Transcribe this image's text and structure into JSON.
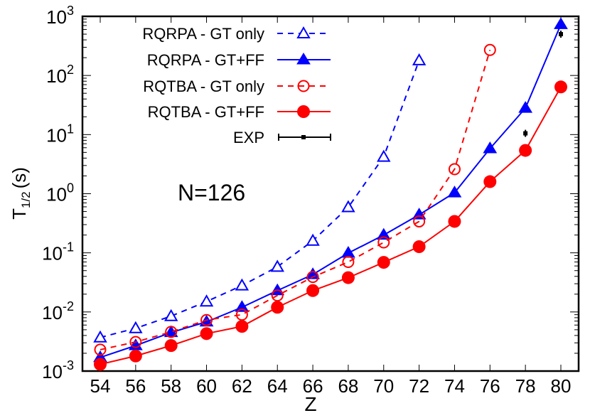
{
  "chart_data": {
    "type": "line",
    "title": "",
    "annotation": "N=126",
    "xlabel": "Z",
    "ylabel": "T1/2 (s)",
    "ylabel_main": "T",
    "ylabel_sub": "1/2",
    "ylabel_unit": "(s)",
    "yscale": "log",
    "xlim": [
      53,
      81
    ],
    "ylim": [
      0.001,
      1000
    ],
    "x_ticks": [
      54,
      56,
      58,
      60,
      62,
      64,
      66,
      68,
      70,
      72,
      74,
      76,
      78,
      80
    ],
    "y_ticks": [
      {
        "base": "10",
        "exp": "3"
      },
      {
        "base": "10",
        "exp": "2"
      },
      {
        "base": "10",
        "exp": "1"
      },
      {
        "base": "10",
        "exp": "0"
      },
      {
        "base": "10",
        "exp": "-1"
      },
      {
        "base": "10",
        "exp": "-2"
      },
      {
        "base": "10",
        "exp": "-3"
      }
    ],
    "grid": false,
    "legend_position": "upper-left",
    "series": [
      {
        "name": "RQRPA - GT only",
        "color": "#0000ff",
        "line": "dashed",
        "marker": "open-triangle",
        "x": [
          54,
          56,
          58,
          60,
          62,
          64,
          66,
          68,
          70,
          72
        ],
        "values": [
          0.0037,
          0.0053,
          0.0085,
          0.015,
          0.028,
          0.058,
          0.16,
          0.59,
          4.2,
          180
        ]
      },
      {
        "name": "RQRPA - GT+FF",
        "color": "#0000ff",
        "line": "solid",
        "marker": "filled-triangle",
        "x": [
          54,
          56,
          58,
          60,
          62,
          64,
          66,
          68,
          70,
          72,
          74,
          76,
          78,
          80
        ],
        "values": [
          0.0017,
          0.0027,
          0.0045,
          0.0068,
          0.012,
          0.023,
          0.043,
          0.099,
          0.2,
          0.44,
          1.04,
          5.8,
          28,
          730
        ]
      },
      {
        "name": "RQTBA - GT only",
        "color": "#ff0000",
        "line": "dashed",
        "marker": "open-circle",
        "x": [
          54,
          56,
          58,
          60,
          62,
          64,
          66,
          68,
          70,
          72,
          74,
          76
        ],
        "values": [
          0.0023,
          0.0031,
          0.0046,
          0.0073,
          0.009,
          0.019,
          0.039,
          0.07,
          0.15,
          0.34,
          2.6,
          270
        ]
      },
      {
        "name": "RQTBA - GT+FF",
        "color": "#ff0000",
        "line": "solid",
        "marker": "filled-circle",
        "x": [
          54,
          56,
          58,
          60,
          62,
          64,
          66,
          68,
          70,
          72,
          74,
          76,
          78,
          80
        ],
        "values": [
          0.0013,
          0.0018,
          0.0027,
          0.0043,
          0.0057,
          0.012,
          0.023,
          0.038,
          0.069,
          0.127,
          0.34,
          1.6,
          5.4,
          64
        ]
      },
      {
        "name": "EXP",
        "color": "#000000",
        "line": "none",
        "marker": "errorbar-cross",
        "x": [
          78,
          80
        ],
        "values": [
          10.5,
          500
        ]
      }
    ]
  }
}
